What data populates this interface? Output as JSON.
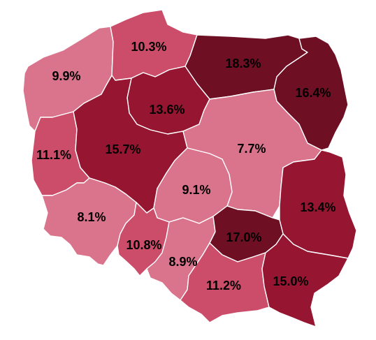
{
  "colors": {
    "very_light": "#d9748c",
    "light": "#cc4d69",
    "medium": "#961632",
    "dark": "#6e0f24"
  },
  "regions": [
    {
      "id": "zachodniopomorskie",
      "label": "9.9%",
      "value": 9.9,
      "fill": "#d9748c"
    },
    {
      "id": "pomorskie",
      "label": "10.3%",
      "value": 10.3,
      "fill": "#cc4d69"
    },
    {
      "id": "warminsko-mazurskie",
      "label": "18.3%",
      "value": 18.3,
      "fill": "#6e0f24"
    },
    {
      "id": "podlaskie",
      "label": "16.4%",
      "value": 16.4,
      "fill": "#6e0f24"
    },
    {
      "id": "kujawsko-pomorskie",
      "label": "13.6%",
      "value": 13.6,
      "fill": "#961632"
    },
    {
      "id": "lubuskie",
      "label": "11.1%",
      "value": 11.1,
      "fill": "#cc4d69"
    },
    {
      "id": "wielkopolskie",
      "label": "15.7%",
      "value": 15.7,
      "fill": "#961632"
    },
    {
      "id": "mazowieckie",
      "label": "7.7%",
      "value": 7.7,
      "fill": "#d9748c"
    },
    {
      "id": "lodzkie",
      "label": "9.1%",
      "value": 9.1,
      "fill": "#d9748c"
    },
    {
      "id": "lubelskie",
      "label": "13.4%",
      "value": 13.4,
      "fill": "#961632"
    },
    {
      "id": "dolnoslaskie",
      "label": "8.1%",
      "value": 8.1,
      "fill": "#d9748c"
    },
    {
      "id": "opolskie",
      "label": "10.8%",
      "value": 10.8,
      "fill": "#cc4d69"
    },
    {
      "id": "slaskie",
      "label": "8.9%",
      "value": 8.9,
      "fill": "#d9748c"
    },
    {
      "id": "swietokrzyskie",
      "label": "17.0%",
      "value": 17.0,
      "fill": "#6e0f24"
    },
    {
      "id": "malopolskie",
      "label": "11.2%",
      "value": 11.2,
      "fill": "#cc4d69"
    },
    {
      "id": "podkarpackie",
      "label": "15.0%",
      "value": 15.0,
      "fill": "#961632"
    }
  ]
}
